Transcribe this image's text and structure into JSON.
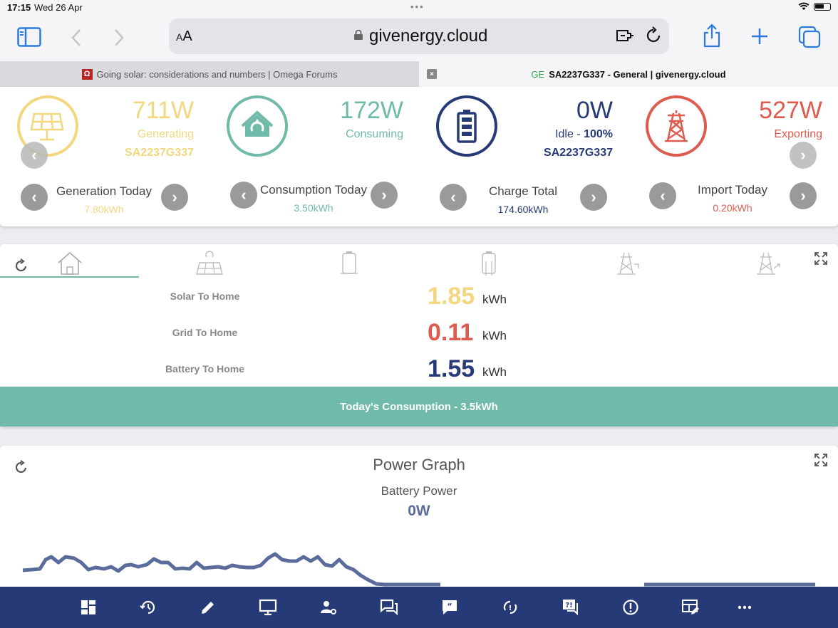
{
  "status": {
    "time": "17:15",
    "date": "Wed 26 Apr",
    "dots": "•••"
  },
  "browser": {
    "aa_small": "A",
    "aa_big": "A",
    "url": "givenergy.cloud"
  },
  "tabs": [
    {
      "title": "Going solar: considerations and numbers | Omega Forums",
      "favicon": "Ω"
    },
    {
      "title": "SA2237G337 - General | givenergy.cloud",
      "favicon": "GE",
      "close": "×"
    }
  ],
  "summary": {
    "solar": {
      "value": "711W",
      "status": "Generating",
      "serial": "SA2237G337",
      "color": "#f3d77f"
    },
    "home": {
      "value": "172W",
      "status": "Consuming",
      "color": "#6fbaa9"
    },
    "battery": {
      "value": "0W",
      "status_prefix": "Idle - ",
      "status_pct": "100%",
      "serial": "SA2237G337",
      "color": "#273a78"
    },
    "grid": {
      "value": "527W",
      "status": "Exporting",
      "color": "#de5b4f"
    }
  },
  "stats": [
    {
      "title": "Generation Today",
      "value": "7.80kWh",
      "color": "#f3d77f"
    },
    {
      "title": "Consumption Today",
      "value": "3.50kWh",
      "color": "#6fbaa9"
    },
    {
      "title": "Charge Total",
      "value": "174.60kWh",
      "color": "#273a78"
    },
    {
      "title": "Import Today",
      "value": "0.20kWh",
      "color": "#de5b4f"
    }
  ],
  "flows": [
    {
      "label": "Solar To Home",
      "value": "1.85",
      "unit": "kWh",
      "color": "#f3d77f"
    },
    {
      "label": "Grid To Home",
      "value": "0.11",
      "unit": "kWh",
      "color": "#de5b4f"
    },
    {
      "label": "Battery To Home",
      "value": "1.55",
      "unit": "kWh",
      "color": "#273a78"
    }
  ],
  "consumption_footer": "Today's Consumption - 3.5kWh",
  "power_graph": {
    "title": "Power Graph",
    "subtitle": "Battery Power",
    "value": "0W"
  },
  "nav_icons": [
    "dashboard-icon",
    "history-icon",
    "edit-icon",
    "monitor-icon",
    "user-settings-icon",
    "chat-icon",
    "quote-icon",
    "sync-icon",
    "faq-icon",
    "alert-icon",
    "table-edit-icon",
    "more-icon"
  ]
}
